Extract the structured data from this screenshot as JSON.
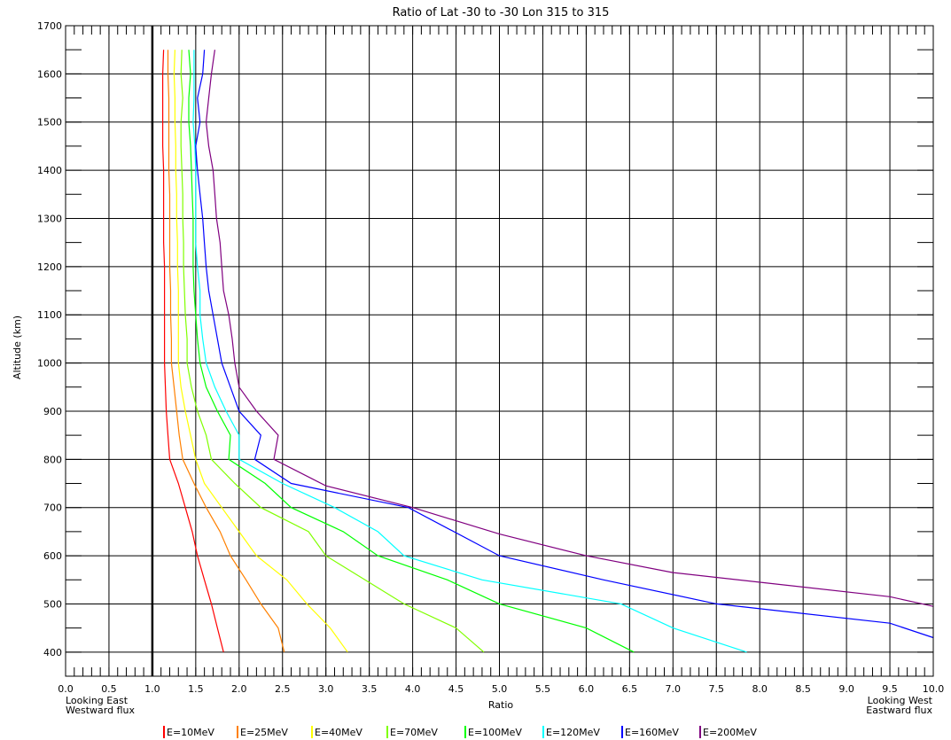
{
  "chart_data": {
    "type": "line",
    "title": "Ratio of Lat -30 to -30  Lon 315 to 315",
    "xlabel": "Ratio",
    "ylabel": "Altitude (km)",
    "xlim": [
      0,
      10
    ],
    "ylim": [
      350,
      1700
    ],
    "x_ticks": [
      "0.0",
      "0.5",
      "1.0",
      "1.5",
      "2.0",
      "2.5",
      "3.0",
      "3.5",
      "4.0",
      "4.5",
      "5.0",
      "5.5",
      "6.0",
      "6.5",
      "7.0",
      "7.5",
      "8.0",
      "8.5",
      "9.0",
      "9.5",
      "10.0"
    ],
    "y_ticks": [
      "400",
      "500",
      "600",
      "700",
      "800",
      "900",
      "1000",
      "1100",
      "1200",
      "1300",
      "1400",
      "1500",
      "1600",
      "1700"
    ],
    "grid": true,
    "reference_line_x": 1.0,
    "left_note": [
      "Looking East",
      "Westward flux"
    ],
    "right_note": [
      "Looking West",
      "Eastward flux"
    ],
    "legend_position": "bottom",
    "series": [
      {
        "name": "E=10MeV",
        "color": "#ff0000",
        "points": [
          [
            1.82,
            400
          ],
          [
            1.75,
            450
          ],
          [
            1.68,
            500
          ],
          [
            1.6,
            550
          ],
          [
            1.52,
            600
          ],
          [
            1.46,
            650
          ],
          [
            1.38,
            700
          ],
          [
            1.3,
            750
          ],
          [
            1.2,
            800
          ],
          [
            1.18,
            850
          ],
          [
            1.16,
            900
          ],
          [
            1.15,
            950
          ],
          [
            1.14,
            1000
          ],
          [
            1.14,
            1050
          ],
          [
            1.14,
            1100
          ],
          [
            1.14,
            1150
          ],
          [
            1.14,
            1200
          ],
          [
            1.13,
            1250
          ],
          [
            1.13,
            1300
          ],
          [
            1.13,
            1350
          ],
          [
            1.13,
            1400
          ],
          [
            1.12,
            1450
          ],
          [
            1.12,
            1500
          ],
          [
            1.12,
            1550
          ],
          [
            1.12,
            1600
          ],
          [
            1.13,
            1650
          ]
        ]
      },
      {
        "name": "E=25MeV",
        "color": "#ff8000",
        "points": [
          [
            2.52,
            400
          ],
          [
            2.45,
            450
          ],
          [
            2.25,
            500
          ],
          [
            2.08,
            550
          ],
          [
            1.9,
            600
          ],
          [
            1.78,
            650
          ],
          [
            1.62,
            700
          ],
          [
            1.48,
            750
          ],
          [
            1.35,
            800
          ],
          [
            1.31,
            850
          ],
          [
            1.28,
            900
          ],
          [
            1.25,
            950
          ],
          [
            1.22,
            1000
          ],
          [
            1.22,
            1050
          ],
          [
            1.21,
            1100
          ],
          [
            1.21,
            1150
          ],
          [
            1.2,
            1200
          ],
          [
            1.2,
            1250
          ],
          [
            1.2,
            1300
          ],
          [
            1.2,
            1350
          ],
          [
            1.19,
            1400
          ],
          [
            1.19,
            1450
          ],
          [
            1.19,
            1500
          ],
          [
            1.19,
            1550
          ],
          [
            1.18,
            1600
          ],
          [
            1.18,
            1650
          ]
        ]
      },
      {
        "name": "E=40MeV",
        "color": "#ffff00",
        "points": [
          [
            3.25,
            400
          ],
          [
            3.05,
            450
          ],
          [
            2.78,
            500
          ],
          [
            2.55,
            550
          ],
          [
            2.2,
            600
          ],
          [
            2.0,
            650
          ],
          [
            1.8,
            700
          ],
          [
            1.6,
            750
          ],
          [
            1.5,
            800
          ],
          [
            1.44,
            850
          ],
          [
            1.38,
            900
          ],
          [
            1.33,
            950
          ],
          [
            1.3,
            1000
          ],
          [
            1.3,
            1050
          ],
          [
            1.3,
            1100
          ],
          [
            1.3,
            1150
          ],
          [
            1.29,
            1200
          ],
          [
            1.29,
            1250
          ],
          [
            1.28,
            1300
          ],
          [
            1.28,
            1350
          ],
          [
            1.27,
            1400
          ],
          [
            1.27,
            1450
          ],
          [
            1.26,
            1500
          ],
          [
            1.26,
            1550
          ],
          [
            1.25,
            1600
          ],
          [
            1.26,
            1650
          ]
        ]
      },
      {
        "name": "E=70MeV",
        "color": "#80ff00",
        "points": [
          [
            4.82,
            400
          ],
          [
            4.5,
            450
          ],
          [
            3.9,
            500
          ],
          [
            3.45,
            550
          ],
          [
            3.0,
            600
          ],
          [
            2.8,
            650
          ],
          [
            2.25,
            700
          ],
          [
            1.95,
            750
          ],
          [
            1.68,
            800
          ],
          [
            1.62,
            850
          ],
          [
            1.52,
            900
          ],
          [
            1.45,
            950
          ],
          [
            1.4,
            1000
          ],
          [
            1.4,
            1050
          ],
          [
            1.38,
            1100
          ],
          [
            1.37,
            1150
          ],
          [
            1.36,
            1200
          ],
          [
            1.36,
            1250
          ],
          [
            1.35,
            1300
          ],
          [
            1.35,
            1350
          ],
          [
            1.34,
            1400
          ],
          [
            1.33,
            1450
          ],
          [
            1.33,
            1500
          ],
          [
            1.35,
            1550
          ],
          [
            1.33,
            1600
          ],
          [
            1.34,
            1650
          ]
        ]
      },
      {
        "name": "E=100MeV",
        "color": "#00ff00",
        "points": [
          [
            6.55,
            400
          ],
          [
            6.0,
            450
          ],
          [
            5.0,
            500
          ],
          [
            4.4,
            550
          ],
          [
            3.6,
            600
          ],
          [
            3.2,
            650
          ],
          [
            2.6,
            700
          ],
          [
            2.3,
            750
          ],
          [
            1.88,
            800
          ],
          [
            1.9,
            850
          ],
          [
            1.75,
            900
          ],
          [
            1.62,
            950
          ],
          [
            1.55,
            1000
          ],
          [
            1.52,
            1050
          ],
          [
            1.5,
            1100
          ],
          [
            1.48,
            1150
          ],
          [
            1.47,
            1200
          ],
          [
            1.47,
            1250
          ],
          [
            1.47,
            1300
          ],
          [
            1.46,
            1350
          ],
          [
            1.45,
            1400
          ],
          [
            1.44,
            1450
          ],
          [
            1.42,
            1500
          ],
          [
            1.42,
            1550
          ],
          [
            1.44,
            1600
          ],
          [
            1.42,
            1650
          ]
        ]
      },
      {
        "name": "E=120MeV",
        "color": "#00ffff",
        "points": [
          [
            7.85,
            400
          ],
          [
            7.0,
            450
          ],
          [
            6.4,
            500
          ],
          [
            4.8,
            550
          ],
          [
            3.9,
            600
          ],
          [
            3.6,
            650
          ],
          [
            3.1,
            700
          ],
          [
            2.5,
            750
          ],
          [
            2.0,
            800
          ],
          [
            2.0,
            850
          ],
          [
            1.85,
            900
          ],
          [
            1.72,
            950
          ],
          [
            1.62,
            1000
          ],
          [
            1.58,
            1050
          ],
          [
            1.55,
            1100
          ],
          [
            1.55,
            1150
          ],
          [
            1.52,
            1200
          ],
          [
            1.5,
            1250
          ],
          [
            1.5,
            1300
          ],
          [
            1.5,
            1350
          ],
          [
            1.5,
            1400
          ],
          [
            1.49,
            1450
          ],
          [
            1.47,
            1500
          ],
          [
            1.48,
            1550
          ],
          [
            1.48,
            1600
          ],
          [
            1.48,
            1650
          ]
        ]
      },
      {
        "name": "E=160MeV",
        "color": "#0000ff",
        "points": [
          [
            10.0,
            430
          ],
          [
            9.5,
            460
          ],
          [
            7.5,
            500
          ],
          [
            6.2,
            550
          ],
          [
            5.0,
            600
          ],
          [
            3.95,
            700
          ],
          [
            2.6,
            750
          ],
          [
            2.18,
            800
          ],
          [
            2.25,
            850
          ],
          [
            2.0,
            900
          ],
          [
            1.9,
            950
          ],
          [
            1.8,
            1000
          ],
          [
            1.75,
            1050
          ],
          [
            1.7,
            1100
          ],
          [
            1.65,
            1150
          ],
          [
            1.62,
            1200
          ],
          [
            1.6,
            1250
          ],
          [
            1.58,
            1300
          ],
          [
            1.55,
            1350
          ],
          [
            1.52,
            1400
          ],
          [
            1.5,
            1450
          ],
          [
            1.55,
            1500
          ],
          [
            1.52,
            1550
          ],
          [
            1.58,
            1600
          ],
          [
            1.6,
            1650
          ]
        ]
      },
      {
        "name": "E=200MeV",
        "color": "#800080",
        "points": [
          [
            10.0,
            495
          ],
          [
            9.5,
            515
          ],
          [
            7.0,
            565
          ],
          [
            6.0,
            600
          ],
          [
            5.0,
            645
          ],
          [
            4.0,
            700
          ],
          [
            3.0,
            745
          ],
          [
            2.4,
            800
          ],
          [
            2.45,
            850
          ],
          [
            2.2,
            900
          ],
          [
            2.0,
            950
          ],
          [
            1.95,
            1000
          ],
          [
            1.92,
            1050
          ],
          [
            1.88,
            1100
          ],
          [
            1.82,
            1150
          ],
          [
            1.8,
            1200
          ],
          [
            1.78,
            1250
          ],
          [
            1.74,
            1300
          ],
          [
            1.72,
            1350
          ],
          [
            1.7,
            1400
          ],
          [
            1.65,
            1450
          ],
          [
            1.62,
            1500
          ],
          [
            1.65,
            1550
          ],
          [
            1.68,
            1600
          ],
          [
            1.72,
            1650
          ]
        ]
      }
    ]
  }
}
